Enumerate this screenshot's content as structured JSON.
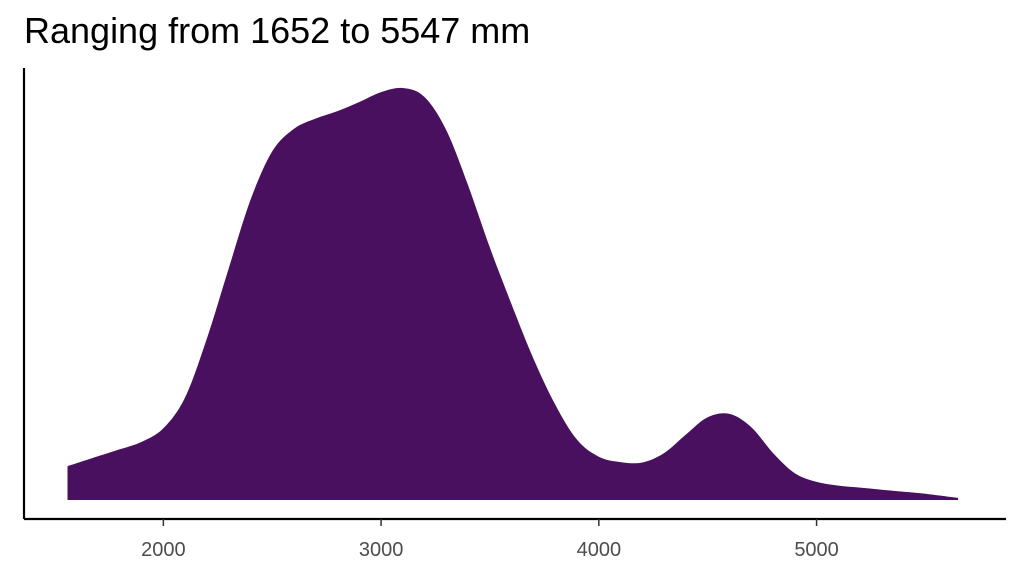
{
  "chart_data": {
    "type": "area",
    "title": "Ranging from 1652 to 5547 mm",
    "xlabel": "",
    "ylabel": "",
    "xlim": [
      1360,
      5870
    ],
    "ylim": [
      0,
      1
    ],
    "x_ticks": [
      2000,
      3000,
      4000,
      5000
    ],
    "x_tick_labels": [
      "2000",
      "3000",
      "4000",
      "5000"
    ],
    "grid": false,
    "fill_color": "#48105E",
    "axis_color": "#000000",
    "tick_label_color": "#4d4d4d",
    "series": [
      {
        "x": [
          1560,
          1700,
          1800,
          1900,
          2000,
          2100,
          2200,
          2300,
          2400,
          2500,
          2600,
          2700,
          2800,
          2900,
          3000,
          3100,
          3200,
          3300,
          3400,
          3500,
          3600,
          3700,
          3800,
          3900,
          4000,
          4100,
          4200,
          4300,
          4400,
          4500,
          4600,
          4700,
          4800,
          4900,
          5000,
          5100,
          5200,
          5300,
          5400,
          5500,
          5650
        ],
        "y": [
          0.082,
          0.106,
          0.123,
          0.141,
          0.174,
          0.249,
          0.392,
          0.562,
          0.728,
          0.846,
          0.901,
          0.926,
          0.944,
          0.966,
          0.99,
          1.0,
          0.978,
          0.897,
          0.763,
          0.612,
          0.474,
          0.343,
          0.231,
          0.146,
          0.105,
          0.092,
          0.091,
          0.114,
          0.159,
          0.201,
          0.209,
          0.177,
          0.114,
          0.065,
          0.044,
          0.035,
          0.03,
          0.025,
          0.02,
          0.015,
          0.005
        ]
      }
    ]
  }
}
